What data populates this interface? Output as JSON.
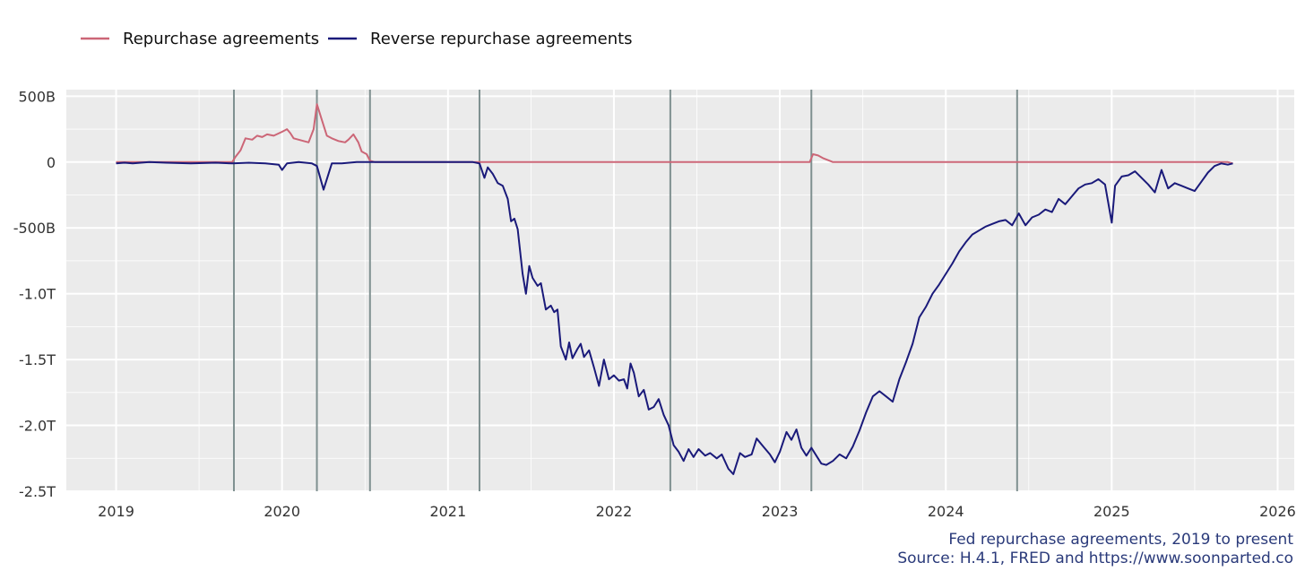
{
  "chart_data": {
    "type": "line",
    "legend_position": "top-left",
    "grid": true,
    "xlim": [
      2018.7,
      2026.1
    ],
    "ylim": [
      -2.5,
      0.55
    ],
    "x_ticks": [
      2019,
      2020,
      2021,
      2022,
      2023,
      2024,
      2025,
      2026
    ],
    "x_tick_labels": [
      "2019",
      "2020",
      "2021",
      "2022",
      "2023",
      "2024",
      "2025",
      "2026"
    ],
    "y_ticks": [
      0.5,
      0,
      -0.5,
      -1.0,
      -1.5,
      -2.0,
      -2.5
    ],
    "y_tick_labels": [
      "500B",
      "0",
      "-500B",
      "-1.0T",
      "-1.5T",
      "-2.0T",
      "-2.5T"
    ],
    "y_unit": "trillions of dollars",
    "vertical_markers": [
      2019.71,
      2020.21,
      2020.53,
      2021.19,
      2022.34,
      2023.19,
      2024.43
    ],
    "caption": {
      "line1": "Fed repurchase agreements, 2019 to present",
      "line2": "Source: H.4.1, FRED and https://www.soonparted.co"
    },
    "colors": {
      "repo": "#cc6677",
      "reverse_repo": "#1a1a7a",
      "panel_bg": "#ebebeb",
      "grid": "#ffffff",
      "marker": "#7f9090",
      "caption": "#2a3a7a"
    },
    "series": [
      {
        "name": "Repurchase agreements",
        "color": "#cc6677",
        "points": [
          [
            2019.0,
            0
          ],
          [
            2019.7,
            0
          ],
          [
            2019.72,
            0.04
          ],
          [
            2019.75,
            0.09
          ],
          [
            2019.78,
            0.18
          ],
          [
            2019.82,
            0.17
          ],
          [
            2019.85,
            0.2
          ],
          [
            2019.88,
            0.19
          ],
          [
            2019.91,
            0.21
          ],
          [
            2019.95,
            0.2
          ],
          [
            2020.0,
            0.23
          ],
          [
            2020.03,
            0.25
          ],
          [
            2020.05,
            0.22
          ],
          [
            2020.07,
            0.18
          ],
          [
            2020.1,
            0.17
          ],
          [
            2020.13,
            0.16
          ],
          [
            2020.16,
            0.15
          ],
          [
            2020.19,
            0.25
          ],
          [
            2020.21,
            0.44
          ],
          [
            2020.24,
            0.32
          ],
          [
            2020.27,
            0.2
          ],
          [
            2020.3,
            0.18
          ],
          [
            2020.34,
            0.16
          ],
          [
            2020.38,
            0.15
          ],
          [
            2020.4,
            0.17
          ],
          [
            2020.43,
            0.21
          ],
          [
            2020.46,
            0.15
          ],
          [
            2020.48,
            0.08
          ],
          [
            2020.51,
            0.06
          ],
          [
            2020.53,
            0.01
          ],
          [
            2020.56,
            0
          ],
          [
            2023.18,
            0
          ],
          [
            2023.2,
            0.06
          ],
          [
            2023.23,
            0.05
          ],
          [
            2023.26,
            0.03
          ],
          [
            2023.3,
            0.01
          ],
          [
            2023.32,
            0
          ],
          [
            2025.7,
            0
          ],
          [
            2025.73,
            -0.01
          ]
        ]
      },
      {
        "name": "Reverse repurchase agreements",
        "color": "#1a1a7a",
        "points": [
          [
            2019.0,
            -0.01
          ],
          [
            2019.05,
            -0.005
          ],
          [
            2019.1,
            -0.01
          ],
          [
            2019.2,
            0
          ],
          [
            2019.3,
            -0.005
          ],
          [
            2019.45,
            -0.01
          ],
          [
            2019.6,
            -0.005
          ],
          [
            2019.7,
            -0.01
          ],
          [
            2019.8,
            -0.005
          ],
          [
            2019.9,
            -0.01
          ],
          [
            2019.98,
            -0.02
          ],
          [
            2020.0,
            -0.06
          ],
          [
            2020.03,
            -0.01
          ],
          [
            2020.1,
            0
          ],
          [
            2020.18,
            -0.01
          ],
          [
            2020.21,
            -0.03
          ],
          [
            2020.25,
            -0.21
          ],
          [
            2020.3,
            -0.01
          ],
          [
            2020.36,
            -0.01
          ],
          [
            2020.45,
            0
          ],
          [
            2020.6,
            0
          ],
          [
            2020.8,
            0
          ],
          [
            2021.0,
            0
          ],
          [
            2021.15,
            0
          ],
          [
            2021.19,
            -0.01
          ],
          [
            2021.22,
            -0.12
          ],
          [
            2021.24,
            -0.04
          ],
          [
            2021.27,
            -0.09
          ],
          [
            2021.3,
            -0.16
          ],
          [
            2021.33,
            -0.18
          ],
          [
            2021.36,
            -0.28
          ],
          [
            2021.38,
            -0.45
          ],
          [
            2021.4,
            -0.43
          ],
          [
            2021.42,
            -0.51
          ],
          [
            2021.45,
            -0.85
          ],
          [
            2021.47,
            -1.0
          ],
          [
            2021.49,
            -0.79
          ],
          [
            2021.51,
            -0.88
          ],
          [
            2021.54,
            -0.94
          ],
          [
            2021.56,
            -0.92
          ],
          [
            2021.59,
            -1.12
          ],
          [
            2021.62,
            -1.09
          ],
          [
            2021.64,
            -1.14
          ],
          [
            2021.66,
            -1.12
          ],
          [
            2021.68,
            -1.4
          ],
          [
            2021.71,
            -1.5
          ],
          [
            2021.73,
            -1.37
          ],
          [
            2021.75,
            -1.49
          ],
          [
            2021.78,
            -1.42
          ],
          [
            2021.8,
            -1.38
          ],
          [
            2021.82,
            -1.48
          ],
          [
            2021.85,
            -1.43
          ],
          [
            2021.88,
            -1.56
          ],
          [
            2021.91,
            -1.7
          ],
          [
            2021.94,
            -1.5
          ],
          [
            2021.97,
            -1.65
          ],
          [
            2022.0,
            -1.62
          ],
          [
            2022.03,
            -1.66
          ],
          [
            2022.06,
            -1.65
          ],
          [
            2022.08,
            -1.72
          ],
          [
            2022.1,
            -1.53
          ],
          [
            2022.12,
            -1.6
          ],
          [
            2022.15,
            -1.78
          ],
          [
            2022.18,
            -1.73
          ],
          [
            2022.21,
            -1.88
          ],
          [
            2022.24,
            -1.86
          ],
          [
            2022.27,
            -1.8
          ],
          [
            2022.3,
            -1.92
          ],
          [
            2022.33,
            -2.0
          ],
          [
            2022.36,
            -2.15
          ],
          [
            2022.39,
            -2.2
          ],
          [
            2022.42,
            -2.27
          ],
          [
            2022.45,
            -2.18
          ],
          [
            2022.48,
            -2.24
          ],
          [
            2022.51,
            -2.18
          ],
          [
            2022.55,
            -2.23
          ],
          [
            2022.58,
            -2.21
          ],
          [
            2022.62,
            -2.25
          ],
          [
            2022.65,
            -2.22
          ],
          [
            2022.69,
            -2.33
          ],
          [
            2022.72,
            -2.37
          ],
          [
            2022.76,
            -2.21
          ],
          [
            2022.79,
            -2.24
          ],
          [
            2022.83,
            -2.22
          ],
          [
            2022.86,
            -2.1
          ],
          [
            2022.9,
            -2.16
          ],
          [
            2022.94,
            -2.22
          ],
          [
            2022.97,
            -2.28
          ],
          [
            2023.0,
            -2.2
          ],
          [
            2023.04,
            -2.05
          ],
          [
            2023.07,
            -2.11
          ],
          [
            2023.1,
            -2.03
          ],
          [
            2023.13,
            -2.17
          ],
          [
            2023.16,
            -2.23
          ],
          [
            2023.19,
            -2.17
          ],
          [
            2023.22,
            -2.23
          ],
          [
            2023.25,
            -2.29
          ],
          [
            2023.28,
            -2.3
          ],
          [
            2023.32,
            -2.27
          ],
          [
            2023.36,
            -2.22
          ],
          [
            2023.4,
            -2.25
          ],
          [
            2023.44,
            -2.16
          ],
          [
            2023.48,
            -2.04
          ],
          [
            2023.52,
            -1.9
          ],
          [
            2023.56,
            -1.78
          ],
          [
            2023.6,
            -1.74
          ],
          [
            2023.64,
            -1.78
          ],
          [
            2023.68,
            -1.82
          ],
          [
            2023.72,
            -1.65
          ],
          [
            2023.76,
            -1.52
          ],
          [
            2023.8,
            -1.38
          ],
          [
            2023.84,
            -1.18
          ],
          [
            2023.88,
            -1.1
          ],
          [
            2023.92,
            -1.0
          ],
          [
            2023.96,
            -0.93
          ],
          [
            2024.0,
            -0.85
          ],
          [
            2024.04,
            -0.77
          ],
          [
            2024.08,
            -0.68
          ],
          [
            2024.12,
            -0.61
          ],
          [
            2024.16,
            -0.55
          ],
          [
            2024.2,
            -0.52
          ],
          [
            2024.24,
            -0.49
          ],
          [
            2024.28,
            -0.47
          ],
          [
            2024.32,
            -0.45
          ],
          [
            2024.36,
            -0.44
          ],
          [
            2024.4,
            -0.48
          ],
          [
            2024.44,
            -0.39
          ],
          [
            2024.48,
            -0.48
          ],
          [
            2024.52,
            -0.42
          ],
          [
            2024.56,
            -0.4
          ],
          [
            2024.6,
            -0.36
          ],
          [
            2024.64,
            -0.38
          ],
          [
            2024.68,
            -0.28
          ],
          [
            2024.72,
            -0.32
          ],
          [
            2024.76,
            -0.26
          ],
          [
            2024.8,
            -0.2
          ],
          [
            2024.84,
            -0.17
          ],
          [
            2024.88,
            -0.16
          ],
          [
            2024.92,
            -0.13
          ],
          [
            2024.96,
            -0.17
          ],
          [
            2025.0,
            -0.46
          ],
          [
            2025.02,
            -0.18
          ],
          [
            2025.06,
            -0.11
          ],
          [
            2025.1,
            -0.1
          ],
          [
            2025.14,
            -0.07
          ],
          [
            2025.18,
            -0.12
          ],
          [
            2025.22,
            -0.17
          ],
          [
            2025.26,
            -0.23
          ],
          [
            2025.3,
            -0.06
          ],
          [
            2025.34,
            -0.2
          ],
          [
            2025.38,
            -0.16
          ],
          [
            2025.42,
            -0.18
          ],
          [
            2025.46,
            -0.2
          ],
          [
            2025.5,
            -0.22
          ],
          [
            2025.54,
            -0.15
          ],
          [
            2025.58,
            -0.08
          ],
          [
            2025.62,
            -0.03
          ],
          [
            2025.66,
            -0.01
          ],
          [
            2025.7,
            -0.02
          ],
          [
            2025.73,
            -0.01
          ]
        ]
      }
    ]
  }
}
